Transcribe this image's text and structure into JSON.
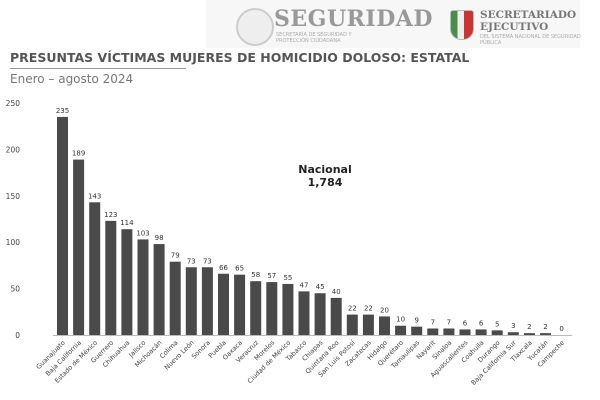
{
  "header": {
    "brand1_title": "SEGURIDAD",
    "brand1_sub": "SECRETARÍA DE SEGURIDAD Y PROTECCIÓN CIUDADANA",
    "brand2_title_1": "SECRETARIADO",
    "brand2_title_2": "EJECUTIVO",
    "brand2_sub": "DEL SISTEMA NACIONAL DE SEGURIDAD PÚBLICA"
  },
  "chart_data": {
    "type": "bar",
    "title": "PRESUNTAS VÍCTIMAS MUJERES DE HOMICIDIO DOLOSO: ESTATAL",
    "subtitle": "Enero – agosto 2024",
    "annotation": {
      "label": "Nacional",
      "value": "1,784"
    },
    "ylim": [
      0,
      250
    ],
    "yticks": [
      0,
      50,
      100,
      150,
      200,
      250
    ],
    "grid": false,
    "bar_color": "#4a4a4a",
    "categories": [
      "Guanajuato",
      "Baja California",
      "Estado de México",
      "Guerrero",
      "Chihuahua",
      "Jalisco",
      "Michoacán",
      "Colima",
      "Nuevo León",
      "Sonora",
      "Puebla",
      "Oaxaca",
      "Veracruz",
      "Morelos",
      "Ciudad de México",
      "Tabasco",
      "Chiapas",
      "Quintana Roo",
      "San Luis Potosí",
      "Zacatecas",
      "Hidalgo",
      "Querétaro",
      "Tamaulipas",
      "Nayarit",
      "Sinaloa",
      "Aguascalientes",
      "Coahuila",
      "Durango",
      "Baja California Sur",
      "Tlaxcala",
      "Yucatán",
      "Campeche"
    ],
    "values": [
      235,
      189,
      143,
      123,
      114,
      103,
      98,
      79,
      73,
      73,
      66,
      65,
      58,
      57,
      55,
      47,
      45,
      40,
      22,
      22,
      20,
      10,
      9,
      7,
      7,
      6,
      6,
      5,
      3,
      2,
      2,
      0
    ]
  }
}
